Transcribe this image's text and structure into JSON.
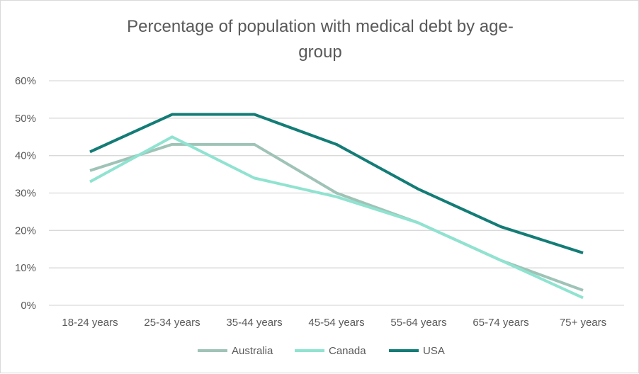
{
  "chart_data": {
    "type": "line",
    "title_lines": [
      "Percentage of population with medical debt by age-",
      "group"
    ],
    "categories": [
      "18-24 years",
      "25-34 years",
      "35-44 years",
      "45-54 years",
      "55-64 years",
      "65-74 years",
      "75+ years"
    ],
    "y_ticks": [
      "0%",
      "10%",
      "20%",
      "30%",
      "40%",
      "50%",
      "60%"
    ],
    "ylim": [
      0,
      60
    ],
    "y_unit": "%",
    "grid": true,
    "legend_position": "bottom",
    "series": [
      {
        "name": "Australia",
        "color": "#9fc3b6",
        "values": [
          36,
          43,
          43,
          30,
          22,
          12,
          4
        ]
      },
      {
        "name": "Canada",
        "color": "#8fe3d0",
        "values": [
          33,
          45,
          34,
          29,
          22,
          12,
          2
        ]
      },
      {
        "name": "USA",
        "color": "#137c76",
        "values": [
          41,
          51,
          51,
          43,
          31,
          21,
          14
        ]
      }
    ]
  }
}
